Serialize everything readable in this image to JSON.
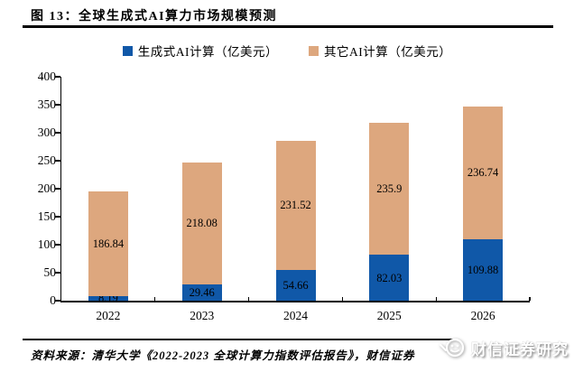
{
  "figure": {
    "title": "图 13：全球生成式AI算力市场规模预测",
    "source": "资料来源：清华大学《2022-2023 全球计算力指数评估报告》，财信证券",
    "watermark": "财信证券研究"
  },
  "legend": [
    {
      "label": "生成式AI计算（亿美元）",
      "color": "#1058A8"
    },
    {
      "label": "其它AI计算（亿美元）",
      "color": "#DDA77E"
    }
  ],
  "chart_data": {
    "type": "bar",
    "stacked": true,
    "grid": false,
    "legend_position": "top",
    "categories": [
      "2022",
      "2023",
      "2024",
      "2025",
      "2026"
    ],
    "series": [
      {
        "name": "生成式AI计算（亿美元）",
        "color": "#1058A8",
        "values": [
          8.19,
          29.46,
          54.66,
          82.03,
          109.88
        ],
        "labels": [
          "8.19",
          "29.46",
          "54.66",
          "82.03",
          "109.88"
        ]
      },
      {
        "name": "其它AI计算（亿美元）",
        "color": "#DDA77E",
        "values": [
          186.84,
          218.08,
          231.52,
          235.9,
          236.74
        ],
        "labels": [
          "186.84",
          "218.08",
          "231.52",
          "235.9",
          "236.74"
        ]
      }
    ],
    "totals": [
      195.03,
      247.54,
      286.18,
      317.93,
      346.62
    ],
    "ylim": [
      0,
      400
    ],
    "yticks": [
      0,
      50,
      100,
      150,
      200,
      250,
      300,
      350,
      400
    ],
    "ytick_labels": [
      "0",
      "50",
      "100",
      "150",
      "200",
      "250",
      "300",
      "350",
      "400"
    ],
    "xlabel": "",
    "ylabel": ""
  }
}
